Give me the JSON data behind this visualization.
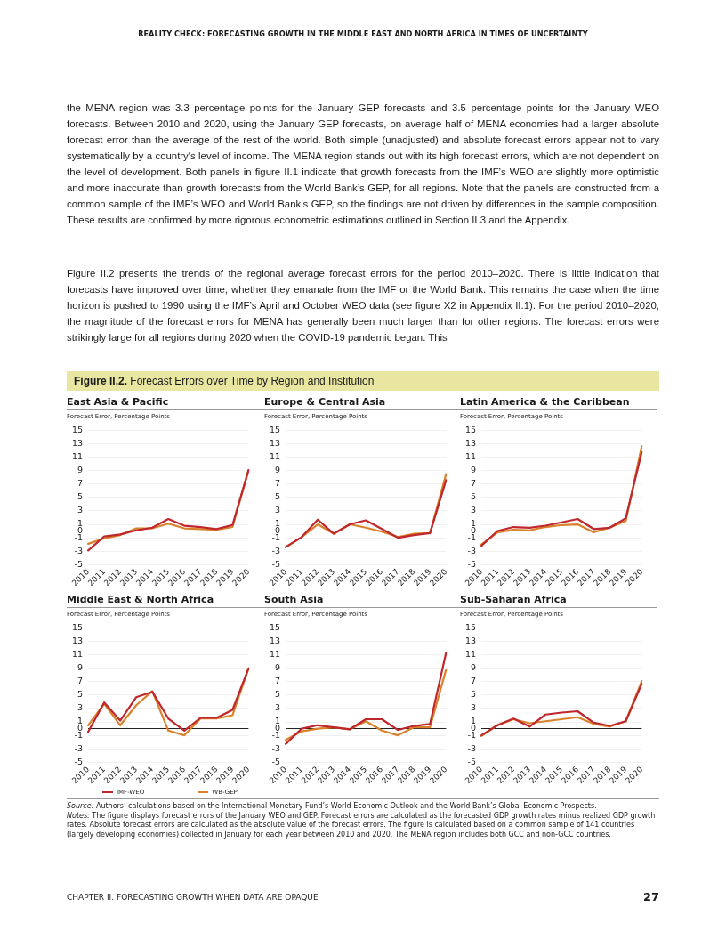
{
  "chart_data": [
    {
      "type": "line",
      "title": "East Asia & Pacific",
      "ylabel": "Forecast Error, Percentage Points",
      "categories": [
        "2010",
        "2011",
        "2012",
        "2013",
        "2014",
        "2015",
        "2016",
        "2017",
        "2018",
        "2019",
        "2020"
      ],
      "ylim": [
        -5,
        15
      ],
      "yticks": [
        -5,
        -3,
        -1,
        0,
        1,
        3,
        5,
        7,
        9,
        11,
        13,
        15
      ],
      "grid": "y",
      "legend": false,
      "marker": "none",
      "series": [
        {
          "color": "#c0272d",
          "values": [
            -2.9,
            -0.8,
            -0.5,
            0.1,
            0.5,
            1.8,
            0.8,
            0.6,
            0.3,
            0.9,
            9.1
          ]
        },
        {
          "color": "#d9822b",
          "values": [
            -1.9,
            -1.1,
            -0.6,
            0.4,
            0.4,
            1.1,
            0.4,
            0.3,
            0.2,
            0.6,
            9.1
          ]
        }
      ],
      "annotations": [
        "REALITY CHECK: FORECASTING GROWTH IN THE MIDDLE EAST AND NORTH AFRICA IN TIMES OF UNCERTAINTY",
        "the MENA region was 3.3 percentage points for the January GEP forecasts and 3.5 percentage points for the January WEO forecasts. Between 2010 and 2020, using the January GEP forecasts, on average half of MENA economies had a larger absolute forecast error than the average of the rest of the world. Both simple (unadjusted) and absolute forecast errors appear not to vary systematically by a country's level of income. The MENA region stands out with its high forecast errors, which are not dependent on the level of development. Both panels in figure II.1 indicate that growth forecasts from the IMF’s WEO are slightly more optimistic and more inaccurate than growth forecasts from the World Bank’s GEP, for all regions. Note that the panels are constructed from a common sample of the IMF’s WEO and World Bank’s GEP, so the findings are not driven by differences in the sample composition. These results are confirmed by more rigorous econometric estimations outlined in Section II.3 and the Appendix.",
        "Figure II.2 presents the trends of the regional average forecast errors for the period 2010–2020. There is little indication that forecasts have improved over time, whether they emanate from the IMF or the World Bank. This remains the case when the time horizon is pushed to 1990 using the IMF’s April and October WEO data (see figure X2 in Appendix II.1). For the period 2010–2020, the magnitude of the forecast errors for MENA has generally been much larger than for other regions. The forecast errors were strikingly large for all regions during 2020 when the COVID-19 pandemic began. This",
        "Figure II.2. Forecast Errors over Time by Region and Institution"
      ]
    },
    {
      "type": "line",
      "title": "Europe & Central Asia",
      "ylabel": "Forecast Error, Percentage Points",
      "categories": [
        "2010",
        "2011",
        "2012",
        "2013",
        "2014",
        "2015",
        "2016",
        "2017",
        "2018",
        "2019",
        "2020"
      ],
      "ylim": [
        -5,
        15
      ],
      "yticks": [
        -5,
        -3,
        -1,
        0,
        1,
        3,
        5,
        7,
        9,
        11,
        13,
        15
      ],
      "grid": "y",
      "legend": false,
      "marker": "none",
      "series": [
        {
          "color": "#c0272d",
          "values": [
            -2.4,
            -0.9,
            1.7,
            -0.4,
            1.0,
            1.6,
            0.3,
            -1.0,
            -0.6,
            -0.3,
            7.6
          ]
        },
        {
          "color": "#d9822b",
          "values": [
            -2.4,
            -0.9,
            1.0,
            -0.4,
            1.0,
            0.5,
            -0.1,
            -0.9,
            -0.4,
            -0.3,
            8.5
          ]
        }
      ]
    },
    {
      "type": "line",
      "title": "Latin America & the Caribbean",
      "ylabel": "Forecast Error, Percentage Points",
      "categories": [
        "2010",
        "2011",
        "2012",
        "2013",
        "2014",
        "2015",
        "2016",
        "2017",
        "2018",
        "2019",
        "2020"
      ],
      "ylim": [
        -5,
        15
      ],
      "yticks": [
        -5,
        -3,
        -1,
        0,
        1,
        3,
        5,
        7,
        9,
        11,
        13,
        15
      ],
      "grid": "y",
      "legend": false,
      "marker": "none",
      "series": [
        {
          "color": "#c0272d",
          "values": [
            -2.2,
            0.0,
            0.6,
            0.5,
            0.8,
            1.3,
            1.8,
            0.3,
            0.5,
            1.9,
            11.8
          ]
        },
        {
          "color": "#d9822b",
          "values": [
            -2.0,
            -0.2,
            0.2,
            0.1,
            0.6,
            0.9,
            1.0,
            -0.2,
            0.5,
            1.5,
            12.7
          ]
        }
      ]
    },
    {
      "type": "line",
      "title": "Middle East & North Africa",
      "ylabel": "Forecast Error, Percentage Points",
      "categories": [
        "2010",
        "2011",
        "2012",
        "2013",
        "2014",
        "2015",
        "2016",
        "2017",
        "2018",
        "2019",
        "2020"
      ],
      "ylim": [
        -5,
        15
      ],
      "yticks": [
        -5,
        -3,
        -1,
        0,
        1,
        3,
        5,
        7,
        9,
        11,
        13,
        15
      ],
      "grid": "y",
      "legend": "bottom",
      "marker": "none",
      "series": [
        {
          "name": "IMF-WEO",
          "color": "#c0272d",
          "values": [
            -0.5,
            3.9,
            1.2,
            4.7,
            5.5,
            1.5,
            -0.3,
            1.6,
            1.6,
            2.8,
            9.0
          ]
        },
        {
          "name": "WB-GEP",
          "color": "#d9822b",
          "values": [
            0.5,
            3.7,
            0.5,
            3.5,
            5.6,
            -0.3,
            -1.0,
            1.5,
            1.5,
            2.0,
            9.0
          ]
        }
      ]
    },
    {
      "type": "line",
      "title": "South Asia",
      "ylabel": "Forecast Error, Percentage Points",
      "categories": [
        "2010",
        "2011",
        "2012",
        "2013",
        "2014",
        "2015",
        "2016",
        "2017",
        "2018",
        "2019",
        "2020"
      ],
      "ylim": [
        -5,
        15
      ],
      "yticks": [
        -5,
        -3,
        -1,
        0,
        1,
        3,
        5,
        7,
        9,
        11,
        13,
        15
      ],
      "grid": "y",
      "legend": false,
      "marker": "none",
      "series": [
        {
          "color": "#c0272d",
          "values": [
            -2.3,
            0.0,
            0.5,
            0.2,
            -0.1,
            1.4,
            1.4,
            -0.2,
            0.4,
            0.7,
            11.3
          ]
        },
        {
          "color": "#d9822b",
          "values": [
            -1.7,
            -0.4,
            0.0,
            0.2,
            -0.1,
            1.1,
            -0.3,
            -1.0,
            0.2,
            0.2,
            8.8
          ]
        }
      ]
    },
    {
      "type": "line",
      "title": "Sub-Saharan Africa",
      "ylabel": "Forecast Error, Percentage Points",
      "categories": [
        "2010",
        "2011",
        "2012",
        "2013",
        "2014",
        "2015",
        "2016",
        "2017",
        "2018",
        "2019",
        "2020"
      ],
      "ylim": [
        -5,
        15
      ],
      "yticks": [
        -5,
        -3,
        -1,
        0,
        1,
        3,
        5,
        7,
        9,
        11,
        13,
        15
      ],
      "grid": "y",
      "legend": false,
      "marker": "none",
      "series": [
        {
          "color": "#c0272d",
          "values": [
            -1.0,
            0.5,
            1.5,
            0.3,
            2.1,
            2.4,
            2.6,
            0.9,
            0.4,
            1.1,
            6.7
          ]
        },
        {
          "color": "#d9822b",
          "values": [
            -1.1,
            0.5,
            1.4,
            0.8,
            1.1,
            1.4,
            1.7,
            0.7,
            0.3,
            1.1,
            7.1
          ]
        }
      ],
      "annotations": [
        "Source: Authors’ calculations based on the International Monetary Fund’s World Economic Outlook and the World Bank’s Global Economic Prospects.",
        "Notes: The figure displays forecast errors of the January WEO and GEP. Forecast errors are calculated as the forecasted GDP growth rates minus realized GDP growth rates. Absolute forecast errors are calculated as the absolute value of the forecast errors. The figure is calculated based on a common sample of 141 countries (largely developing economies) collected in January for each year between 2010 and 2020. The MENA region includes both GCC and non-GCC countries.",
        "CHAPTER II. FORECASTING GROWTH WHEN DATA ARE OPAQUE",
        "27"
      ]
    }
  ]
}
